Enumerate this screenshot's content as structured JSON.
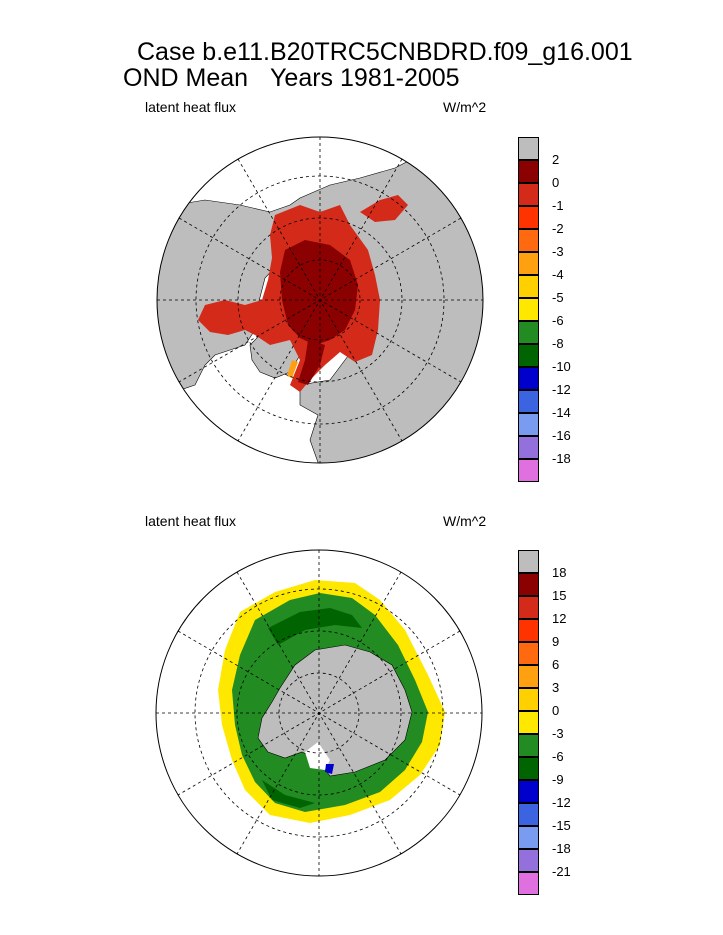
{
  "title": {
    "line1": "Case b.e11.B20TRC5CNBDRD.f09_g16.001",
    "season": "OND Mean",
    "years": "Years 1981-2005"
  },
  "panels": [
    {
      "label": "latent heat flux",
      "units": "W/m^2",
      "hemisphere": "north",
      "colorbar": {
        "labels": [
          "2",
          "0",
          "-1",
          "-2",
          "-3",
          "-4",
          "-5",
          "-6",
          "-8",
          "-10",
          "-12",
          "-14",
          "-16",
          "-18"
        ],
        "colors": [
          "#bdbdbd",
          "#8b0000",
          "#d42a1a",
          "#ff3300",
          "#ff6a10",
          "#ffa010",
          "#ffd000",
          "#ffe800",
          "#228b22",
          "#006400",
          "#0000cd",
          "#3c64e0",
          "#7a9cf0",
          "#9370db",
          "#e070e0"
        ]
      }
    },
    {
      "label": "latent heat flux",
      "units": "W/m^2",
      "hemisphere": "south",
      "colorbar": {
        "labels": [
          "18",
          "15",
          "12",
          "9",
          "6",
          "3",
          "0",
          "-3",
          "-6",
          "-9",
          "-12",
          "-15",
          "-18",
          "-21"
        ],
        "colors": [
          "#bdbdbd",
          "#8b0000",
          "#d42a1a",
          "#ff3300",
          "#ff6a10",
          "#ffa010",
          "#ffd000",
          "#ffe800",
          "#228b22",
          "#006400",
          "#0000cd",
          "#3c64e0",
          "#7a9cf0",
          "#9370db",
          "#e070e0"
        ]
      }
    }
  ],
  "chart_data": [
    {
      "type": "heatmap",
      "title": "Case b.e11.B20TRC5CNBDRD.f09_g16.001",
      "subtitle": "OND Mean   Years 1981-2005",
      "variable": "latent heat flux",
      "units": "W/m^2",
      "projection": "polar stereographic",
      "hemisphere": "north",
      "colorbar_levels": [
        2,
        0,
        -1,
        -2,
        -3,
        -4,
        -5,
        -6,
        -8,
        -10,
        -12,
        -14,
        -16,
        -18
      ],
      "dominant_values": "central Arctic sea ice mostly 0 to 2 (dark red); marginal ice zones -1 to -3"
    },
    {
      "type": "heatmap",
      "title": "Case b.e11.B20TRC5CNBDRD.f09_g16.001",
      "subtitle": "OND Mean   Years 1981-2005",
      "variable": "latent heat flux",
      "units": "W/m^2",
      "projection": "polar stereographic",
      "hemisphere": "south",
      "colorbar_levels": [
        18,
        15,
        12,
        9,
        6,
        3,
        0,
        -3,
        -6,
        -9,
        -12,
        -15,
        -18,
        -21
      ],
      "dominant_values": "Antarctic sea-ice ring mostly -3 to -9 (green); ice edge -3 to 0 (yellow)"
    }
  ]
}
